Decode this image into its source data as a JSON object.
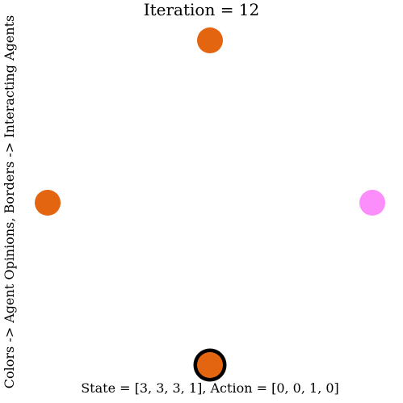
{
  "title": "Iteration = 12",
  "side_label": "Colors -> Agent Opinions, Borders -> Interacting Agents",
  "footer": "State = [3, 3, 3, 1], Action = [0, 0, 1, 0]",
  "colors": {
    "opinion_orange": "#e36510",
    "opinion_pink": "#fc8efc",
    "interaction_border": "#000000",
    "background": "#ffffff"
  },
  "agents": [
    {
      "name": "agent-top",
      "position": "top",
      "opinion": 3,
      "color": "#e36510",
      "interacting": false
    },
    {
      "name": "agent-left",
      "position": "left",
      "opinion": 3,
      "color": "#e36510",
      "interacting": false
    },
    {
      "name": "agent-bottom",
      "position": "bottom",
      "opinion": 3,
      "color": "#e36510",
      "interacting": true
    },
    {
      "name": "agent-right",
      "position": "right",
      "opinion": 1,
      "color": "#fc8efc",
      "interacting": false
    }
  ]
}
